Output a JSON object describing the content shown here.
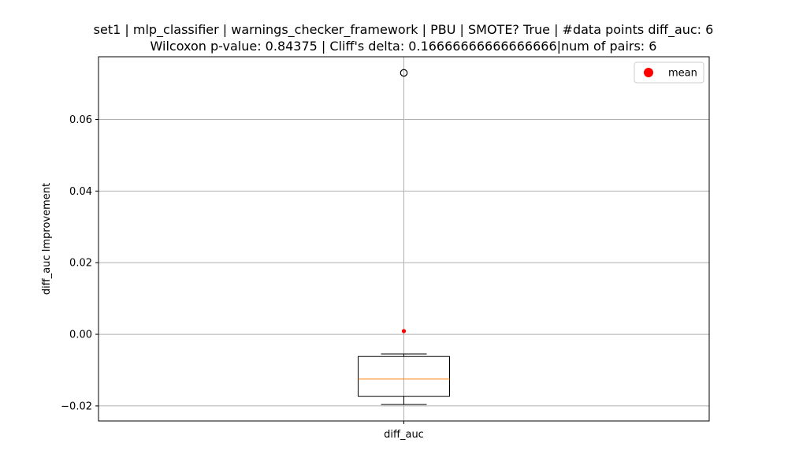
{
  "chart_data": {
    "type": "box",
    "title_line1": "set1 | mlp_classifier | warnings_checker_framework | PBU | SMOTE? True | #data points diff_auc: 6",
    "title_line2": "Wilcoxon p-value: 0.84375 | Cliff's delta: 0.16666666666666666|num of pairs: 6",
    "xlabel": "",
    "ylabel": "diff_auc Improvement",
    "categories": [
      "diff_auc"
    ],
    "yticks": [
      -0.02,
      0.0,
      0.02,
      0.04,
      0.06
    ],
    "ytick_labels": [
      "−0.02",
      "0.00",
      "0.02",
      "0.04",
      "0.06"
    ],
    "ylim": [
      -0.0242,
      0.0775
    ],
    "grid": true,
    "legend_placement": "top-right",
    "box": {
      "whisker_low": -0.0196,
      "q1": -0.0173,
      "median": -0.0125,
      "q3": -0.0062,
      "whisker_high": -0.0055,
      "outliers": [
        0.073
      ],
      "mean": 0.0009
    },
    "legend": [
      {
        "label": "mean",
        "color": "#ff0000"
      }
    ],
    "colors": {
      "median": "#ff7f0e",
      "mean": "#ff0000",
      "box": "#000000",
      "grid": "#b0b0b0"
    }
  }
}
